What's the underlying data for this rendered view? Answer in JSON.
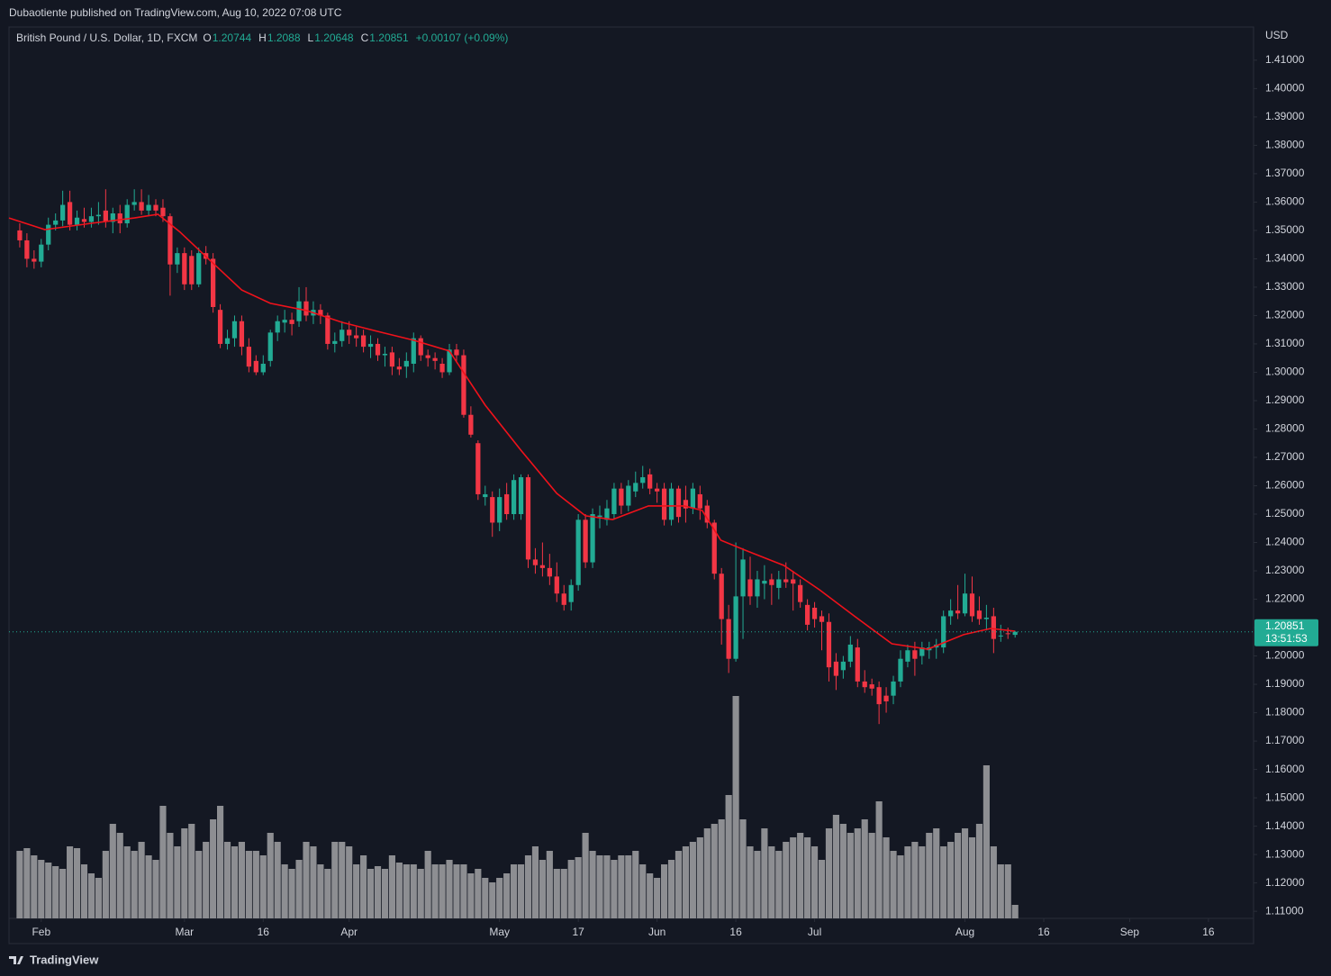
{
  "header": {
    "text": "Dubaotiente published on TradingView.com, Aug 10, 2022 07:08 UTC"
  },
  "footer": {
    "brand": "TradingView"
  },
  "chart_data": {
    "type": "candlestick",
    "title": "British Pound / U.S. Dollar, 1D, FXCM",
    "ohlc_labels": [
      "O",
      "H",
      "L",
      "C"
    ],
    "change": "+0.00107 (+0.09%)",
    "currency": "USD",
    "countdown": "13:51:53",
    "up_color": "#22ab94",
    "down_color": "#f23645",
    "grid": false,
    "candles": [
      [
        1.35,
        1.3525,
        1.344,
        1.3465
      ],
      [
        1.3465,
        1.349,
        1.337,
        1.34
      ],
      [
        1.34,
        1.343,
        1.3365,
        1.339
      ],
      [
        1.339,
        1.347,
        1.337,
        1.345
      ],
      [
        1.345,
        1.3545,
        1.343,
        1.352
      ],
      [
        1.352,
        1.356,
        1.35,
        1.3535
      ],
      [
        1.3535,
        1.364,
        1.3515,
        1.359
      ],
      [
        1.36,
        1.364,
        1.35,
        1.352
      ],
      [
        1.352,
        1.357,
        1.35,
        1.3545
      ],
      [
        1.354,
        1.358,
        1.351,
        1.353
      ],
      [
        1.353,
        1.358,
        1.351,
        1.355
      ],
      [
        1.355,
        1.36,
        1.352,
        1.3555
      ],
      [
        1.357,
        1.3645,
        1.351,
        1.353
      ],
      [
        1.353,
        1.358,
        1.349,
        1.356
      ],
      [
        1.356,
        1.359,
        1.349,
        1.3525
      ],
      [
        1.3525,
        1.361,
        1.351,
        1.359
      ],
      [
        1.359,
        1.3645,
        1.357,
        1.36
      ],
      [
        1.36,
        1.3645,
        1.3555,
        1.357
      ],
      [
        1.357,
        1.3625,
        1.355,
        1.359
      ],
      [
        1.359,
        1.361,
        1.355,
        1.357
      ],
      [
        1.358,
        1.361,
        1.353,
        1.355
      ],
      [
        1.355,
        1.356,
        1.327,
        1.338
      ],
      [
        1.338,
        1.344,
        1.335,
        1.342
      ],
      [
        1.342,
        1.344,
        1.329,
        1.331
      ],
      [
        1.341,
        1.343,
        1.329,
        1.331
      ],
      [
        1.331,
        1.344,
        1.33,
        1.342
      ],
      [
        1.342,
        1.3445,
        1.338,
        1.34
      ],
      [
        1.34,
        1.342,
        1.321,
        1.323
      ],
      [
        1.322,
        1.324,
        1.3085,
        1.31
      ],
      [
        1.31,
        1.315,
        1.308,
        1.312
      ],
      [
        1.312,
        1.32,
        1.309,
        1.318
      ],
      [
        1.318,
        1.32,
        1.306,
        1.309
      ],
      [
        1.309,
        1.312,
        1.3,
        1.302
      ],
      [
        1.304,
        1.306,
        1.299,
        1.3
      ],
      [
        1.3,
        1.306,
        1.299,
        1.303
      ],
      [
        1.304,
        1.315,
        1.302,
        1.314
      ],
      [
        1.314,
        1.32,
        1.311,
        1.318
      ],
      [
        1.3175,
        1.322,
        1.314,
        1.3185
      ],
      [
        1.3185,
        1.321,
        1.313,
        1.317
      ],
      [
        1.318,
        1.33,
        1.316,
        1.325
      ],
      [
        1.325,
        1.33,
        1.318,
        1.32
      ],
      [
        1.32,
        1.325,
        1.317,
        1.322
      ],
      [
        1.322,
        1.324,
        1.317,
        1.32
      ],
      [
        1.32,
        1.321,
        1.308,
        1.31
      ],
      [
        1.31,
        1.314,
        1.307,
        1.311
      ],
      [
        1.311,
        1.318,
        1.309,
        1.315
      ],
      [
        1.315,
        1.318,
        1.31,
        1.313
      ],
      [
        1.313,
        1.316,
        1.309,
        1.312
      ],
      [
        1.313,
        1.315,
        1.307,
        1.309
      ],
      [
        1.309,
        1.313,
        1.305,
        1.31
      ],
      [
        1.31,
        1.312,
        1.304,
        1.306
      ],
      [
        1.306,
        1.309,
        1.302,
        1.3065
      ],
      [
        1.307,
        1.309,
        1.299,
        1.302
      ],
      [
        1.302,
        1.305,
        1.299,
        1.301
      ],
      [
        1.302,
        1.307,
        1.298,
        1.304
      ],
      [
        1.303,
        1.314,
        1.3,
        1.312
      ],
      [
        1.312,
        1.313,
        1.304,
        1.306
      ],
      [
        1.306,
        1.308,
        1.302,
        1.305
      ],
      [
        1.305,
        1.307,
        1.301,
        1.304
      ],
      [
        1.303,
        1.305,
        1.298,
        1.3
      ],
      [
        1.3,
        1.31,
        1.299,
        1.308
      ],
      [
        1.308,
        1.31,
        1.304,
        1.306
      ],
      [
        1.306,
        1.308,
        1.284,
        1.285
      ],
      [
        1.285,
        1.288,
        1.277,
        1.278
      ],
      [
        1.275,
        1.276,
        1.255,
        1.257
      ],
      [
        1.256,
        1.26,
        1.253,
        1.257
      ],
      [
        1.256,
        1.258,
        1.242,
        1.247
      ],
      [
        1.247,
        1.259,
        1.244,
        1.256
      ],
      [
        1.257,
        1.261,
        1.248,
        1.25
      ],
      [
        1.25,
        1.264,
        1.248,
        1.262
      ],
      [
        1.25,
        1.264,
        1.248,
        1.263
      ],
      [
        1.263,
        1.264,
        1.231,
        1.234
      ],
      [
        1.234,
        1.238,
        1.229,
        1.232
      ],
      [
        1.232,
        1.24,
        1.228,
        1.231
      ],
      [
        1.231,
        1.236,
        1.225,
        1.228
      ],
      [
        1.228,
        1.233,
        1.219,
        1.222
      ],
      [
        1.222,
        1.225,
        1.216,
        1.218
      ],
      [
        1.219,
        1.227,
        1.216,
        1.225
      ],
      [
        1.225,
        1.25,
        1.223,
        1.248
      ],
      [
        1.248,
        1.25,
        1.231,
        1.233
      ],
      [
        1.233,
        1.252,
        1.231,
        1.25
      ],
      [
        1.249,
        1.253,
        1.245,
        1.2495
      ],
      [
        1.248,
        1.255,
        1.246,
        1.252
      ],
      [
        1.25,
        1.261,
        1.248,
        1.259
      ],
      [
        1.259,
        1.261,
        1.25,
        1.253
      ],
      [
        1.253,
        1.262,
        1.251,
        1.26
      ],
      [
        1.258,
        1.265,
        1.256,
        1.261
      ],
      [
        1.261,
        1.267,
        1.259,
        1.263
      ],
      [
        1.264,
        1.266,
        1.257,
        1.259
      ],
      [
        1.259,
        1.261,
        1.254,
        1.258
      ],
      [
        1.259,
        1.261,
        1.246,
        1.248
      ],
      [
        1.248,
        1.261,
        1.246,
        1.259
      ],
      [
        1.259,
        1.26,
        1.247,
        1.249
      ],
      [
        1.255,
        1.26,
        1.247,
        1.252
      ],
      [
        1.252,
        1.261,
        1.25,
        1.259
      ],
      [
        1.257,
        1.26,
        1.248,
        1.252
      ],
      [
        1.253,
        1.255,
        1.245,
        1.247
      ],
      [
        1.247,
        1.248,
        1.227,
        1.229
      ],
      [
        1.229,
        1.231,
        1.204,
        1.213
      ],
      [
        1.213,
        1.218,
        1.194,
        1.199
      ],
      [
        1.199,
        1.24,
        1.198,
        1.221
      ],
      [
        1.221,
        1.238,
        1.206,
        1.234
      ],
      [
        1.227,
        1.235,
        1.218,
        1.221
      ],
      [
        1.221,
        1.23,
        1.217,
        1.227
      ],
      [
        1.2255,
        1.232,
        1.22,
        1.2265
      ],
      [
        1.227,
        1.229,
        1.218,
        1.225
      ],
      [
        1.224,
        1.23,
        1.22,
        1.227
      ],
      [
        1.227,
        1.233,
        1.224,
        1.226
      ],
      [
        1.227,
        1.23,
        1.216,
        1.2255
      ],
      [
        1.225,
        1.227,
        1.217,
        1.219
      ],
      [
        1.218,
        1.22,
        1.209,
        1.211
      ],
      [
        1.217,
        1.219,
        1.21,
        1.213
      ],
      [
        1.214,
        1.216,
        1.202,
        1.212
      ],
      [
        1.212,
        1.215,
        1.191,
        1.196
      ],
      [
        1.198,
        1.201,
        1.188,
        1.193
      ],
      [
        1.195,
        1.2,
        1.192,
        1.198
      ],
      [
        1.198,
        1.207,
        1.196,
        1.204
      ],
      [
        1.203,
        1.206,
        1.189,
        1.191
      ],
      [
        1.191,
        1.195,
        1.187,
        1.189
      ],
      [
        1.19,
        1.192,
        1.186,
        1.1885
      ],
      [
        1.189,
        1.191,
        1.176,
        1.183
      ],
      [
        1.186,
        1.189,
        1.18,
        1.184
      ],
      [
        1.186,
        1.193,
        1.183,
        1.191
      ],
      [
        1.191,
        1.202,
        1.189,
        1.199
      ],
      [
        1.198,
        1.204,
        1.196,
        1.202
      ],
      [
        1.202,
        1.205,
        1.193,
        1.199
      ],
      [
        1.2,
        1.205,
        1.197,
        1.203
      ],
      [
        1.202,
        1.205,
        1.199,
        1.203
      ],
      [
        1.203,
        1.206,
        1.199,
        1.204
      ],
      [
        1.203,
        1.216,
        1.201,
        1.214
      ],
      [
        1.214,
        1.22,
        1.211,
        1.216
      ],
      [
        1.216,
        1.225,
        1.213,
        1.215
      ],
      [
        1.215,
        1.229,
        1.214,
        1.222
      ],
      [
        1.222,
        1.228,
        1.212,
        1.214
      ],
      [
        1.216,
        1.221,
        1.211,
        1.213
      ],
      [
        1.213,
        1.218,
        1.209,
        1.2135
      ],
      [
        1.214,
        1.217,
        1.201,
        1.206
      ],
      [
        1.207,
        1.211,
        1.205,
        1.2072
      ],
      [
        1.208,
        1.21,
        1.206,
        1.2078
      ],
      [
        1.20744,
        1.2088,
        1.20648,
        1.20851
      ]
    ],
    "volume": {
      "color": "#8d8e92",
      "vlim": [
        0,
        280
      ],
      "values": [
        75,
        78,
        70,
        65,
        62,
        58,
        55,
        80,
        78,
        60,
        50,
        45,
        75,
        105,
        95,
        80,
        75,
        85,
        70,
        65,
        125,
        95,
        80,
        100,
        105,
        75,
        85,
        110,
        125,
        85,
        80,
        85,
        75,
        75,
        70,
        95,
        85,
        60,
        55,
        65,
        85,
        80,
        60,
        55,
        85,
        85,
        80,
        60,
        70,
        55,
        58,
        55,
        70,
        62,
        60,
        60,
        55,
        75,
        60,
        60,
        65,
        60,
        60,
        50,
        55,
        45,
        40,
        45,
        50,
        60,
        60,
        70,
        80,
        65,
        75,
        55,
        55,
        65,
        68,
        95,
        75,
        70,
        70,
        65,
        70,
        70,
        75,
        60,
        50,
        45,
        60,
        65,
        75,
        80,
        85,
        90,
        100,
        105,
        110,
        137,
        247,
        110,
        80,
        75,
        100,
        80,
        75,
        85,
        90,
        95,
        90,
        80,
        65,
        100,
        115,
        105,
        95,
        100,
        110,
        95,
        130,
        90,
        75,
        70,
        80,
        85,
        80,
        95,
        100,
        80,
        85,
        95,
        100,
        90,
        105,
        170,
        80,
        60,
        60,
        15
      ]
    },
    "ma": {
      "color": "#f0121b",
      "x": [
        -1.5,
        3.5,
        10,
        16,
        19.3,
        22.4,
        26,
        31,
        35,
        40,
        45,
        50,
        55,
        60,
        65,
        70,
        75,
        79,
        82.8,
        87.8,
        92.8,
        95.3,
        97.9,
        101.6,
        106.7,
        111.7,
        116.7,
        121.8,
        126.8,
        131.8,
        135.6,
        139
      ],
      "values": [
        1.3544,
        1.3503,
        1.3525,
        1.3544,
        1.3557,
        1.3494,
        1.3408,
        1.329,
        1.3243,
        1.3218,
        1.3176,
        1.3144,
        1.3113,
        1.3075,
        1.2884,
        1.2725,
        1.2573,
        1.2494,
        1.2481,
        1.2529,
        1.2529,
        1.2513,
        1.2408,
        1.237,
        1.2319,
        1.2233,
        1.2138,
        1.2043,
        1.2024,
        1.2075,
        1.2097,
        1.2087
      ]
    },
    "xlim": [
      -1.5,
      172.3
    ],
    "xticks": [
      {
        "value": 3,
        "label": "Feb"
      },
      {
        "value": 23,
        "label": "Mar"
      },
      {
        "value": 34,
        "label": "16"
      },
      {
        "value": 46,
        "label": "Apr"
      },
      {
        "value": 67,
        "label": "May"
      },
      {
        "value": 78,
        "label": "17"
      },
      {
        "value": 89,
        "label": "Jun"
      },
      {
        "value": 100,
        "label": "16"
      },
      {
        "value": 111,
        "label": "Jul"
      },
      {
        "value": 132,
        "label": "Aug"
      },
      {
        "value": 143,
        "label": "16"
      },
      {
        "value": 155,
        "label": "Sep"
      },
      {
        "value": 166,
        "label": "16"
      }
    ],
    "ylim": [
      1.1075,
      1.4217
    ],
    "yticks": [
      {
        "value": 1.11,
        "label": "1.11000"
      },
      {
        "value": 1.12,
        "label": "1.12000"
      },
      {
        "value": 1.13,
        "label": "1.13000"
      },
      {
        "value": 1.14,
        "label": "1.14000"
      },
      {
        "value": 1.15,
        "label": "1.15000"
      },
      {
        "value": 1.16,
        "label": "1.16000"
      },
      {
        "value": 1.17,
        "label": "1.17000"
      },
      {
        "value": 1.18,
        "label": "1.18000"
      },
      {
        "value": 1.19,
        "label": "1.19000"
      },
      {
        "value": 1.2,
        "label": "1.20000"
      },
      {
        "value": 1.21,
        "label": "1.21000"
      },
      {
        "value": 1.22,
        "label": "1.22000"
      },
      {
        "value": 1.23,
        "label": "1.23000"
      },
      {
        "value": 1.24,
        "label": "1.24000"
      },
      {
        "value": 1.25,
        "label": "1.25000"
      },
      {
        "value": 1.26,
        "label": "1.26000"
      },
      {
        "value": 1.27,
        "label": "1.27000"
      },
      {
        "value": 1.28,
        "label": "1.28000"
      },
      {
        "value": 1.29,
        "label": "1.29000"
      },
      {
        "value": 1.3,
        "label": "1.30000"
      },
      {
        "value": 1.31,
        "label": "1.31000"
      },
      {
        "value": 1.32,
        "label": "1.32000"
      },
      {
        "value": 1.33,
        "label": "1.33000"
      },
      {
        "value": 1.34,
        "label": "1.34000"
      },
      {
        "value": 1.35,
        "label": "1.35000"
      },
      {
        "value": 1.36,
        "label": "1.36000"
      },
      {
        "value": 1.37,
        "label": "1.37000"
      },
      {
        "value": 1.38,
        "label": "1.38000"
      },
      {
        "value": 1.39,
        "label": "1.39000"
      },
      {
        "value": 1.4,
        "label": "1.40000"
      },
      {
        "value": 1.41,
        "label": "1.41000"
      }
    ]
  }
}
